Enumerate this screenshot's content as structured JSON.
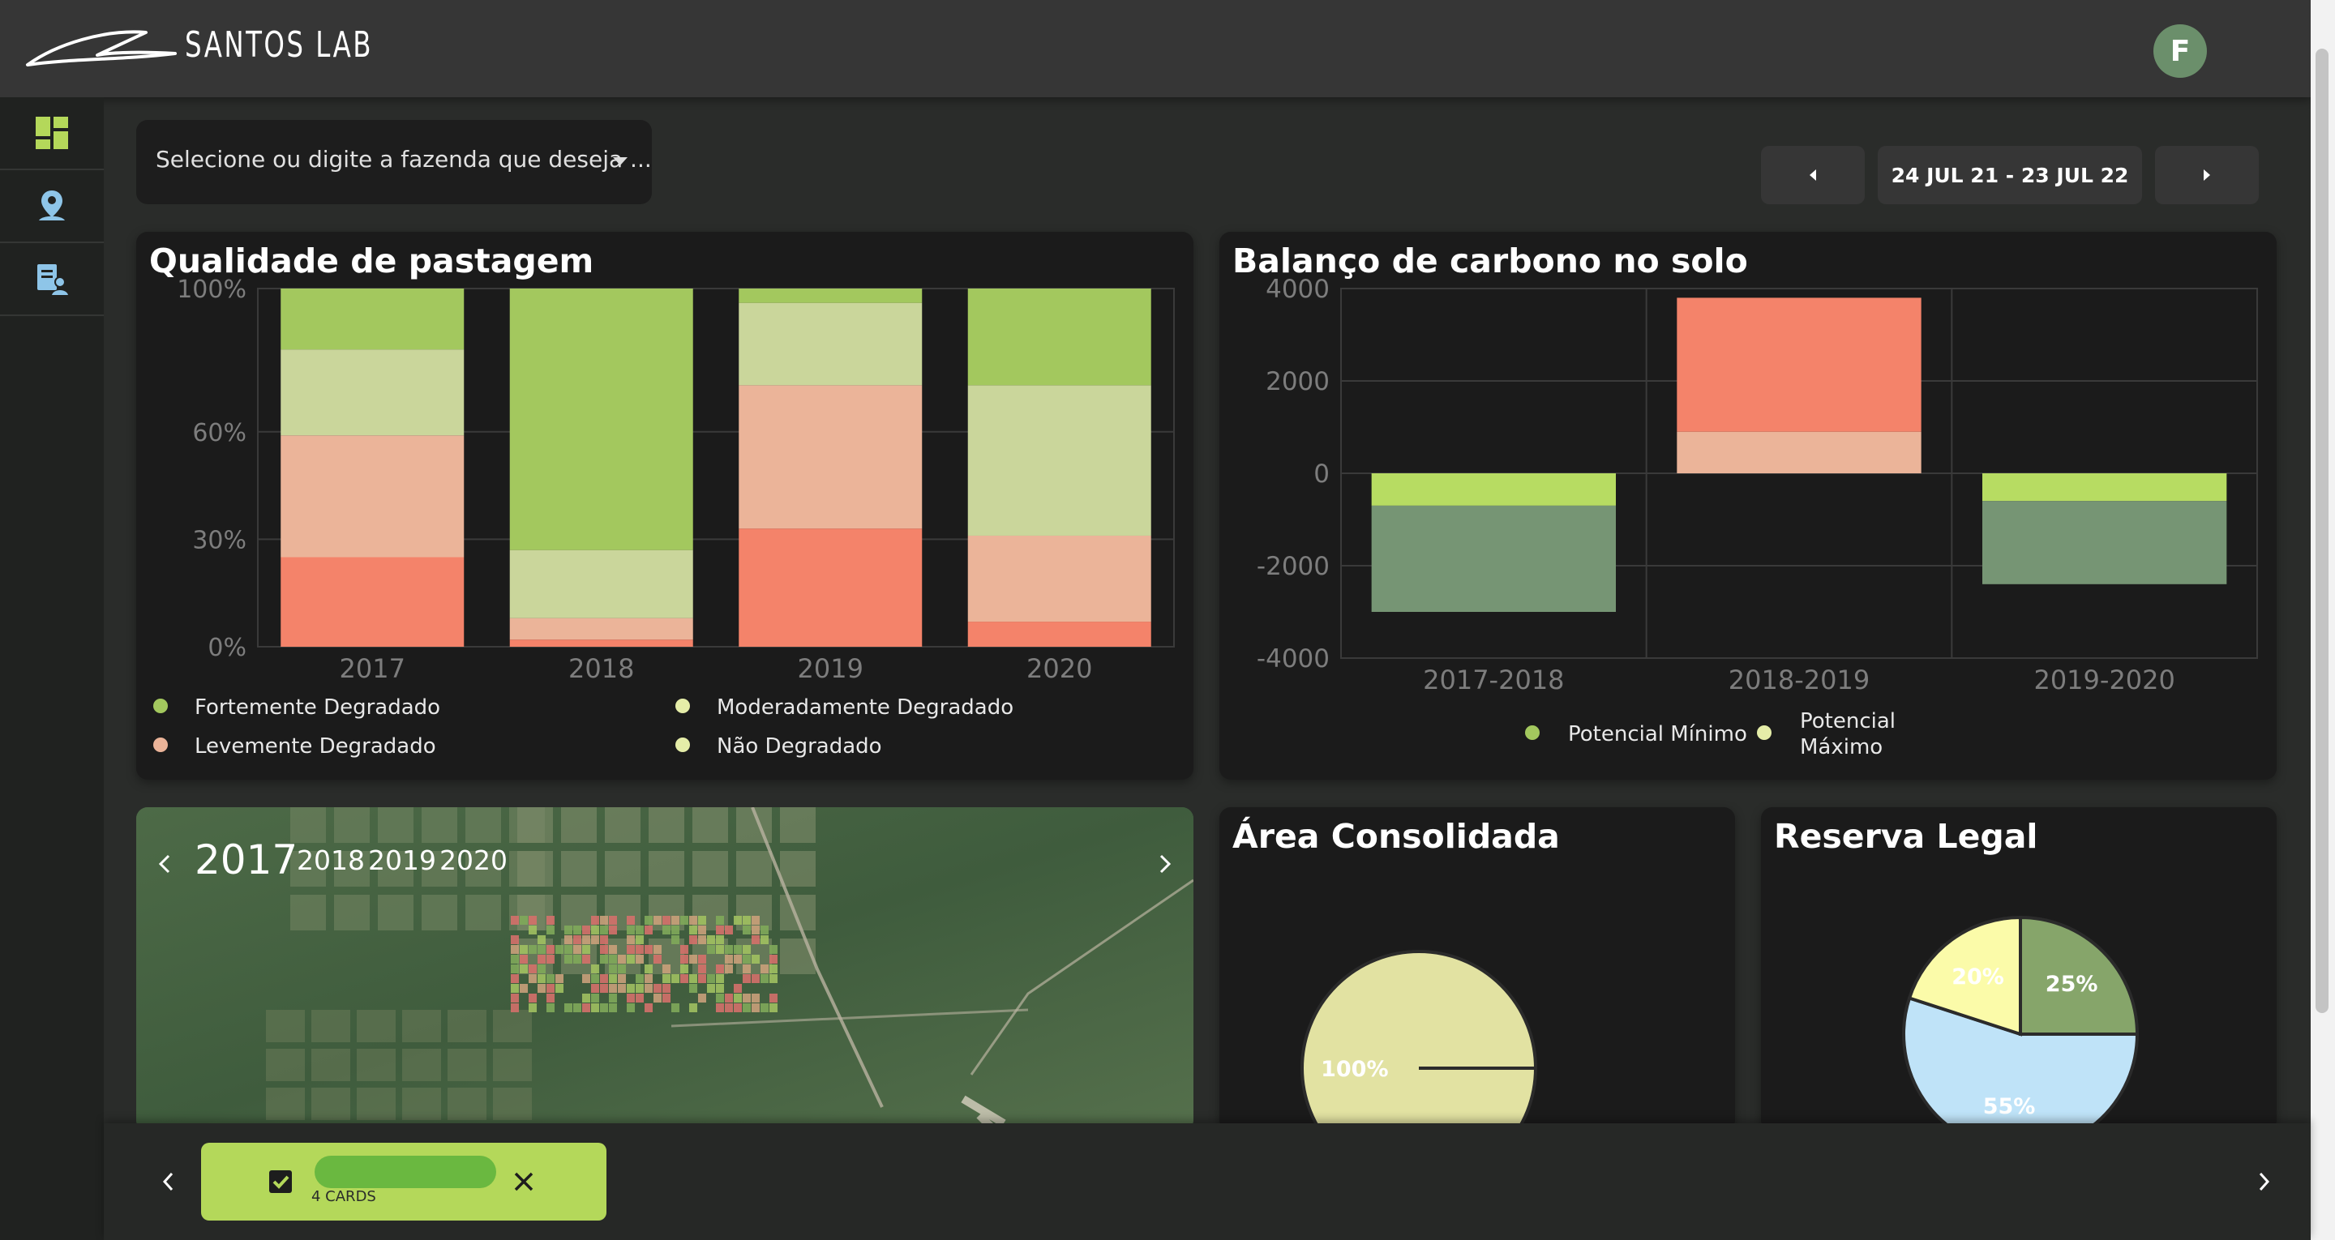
{
  "app": {
    "brand": "SANTOS LAB",
    "avatar_initial": "F",
    "accent": "#b4d85a"
  },
  "sidebar": {
    "items": [
      {
        "name": "dashboard",
        "icon": "dashboard-icon"
      },
      {
        "name": "map-pin-user",
        "icon": "map-pin-user-icon"
      },
      {
        "name": "report-user",
        "icon": "report-user-icon"
      }
    ]
  },
  "farm_select": {
    "placeholder": "Selecione ou digite a fazenda que deseja ..."
  },
  "date_range": {
    "label": "24 JUL 21 - 23 JUL 22",
    "prev_icon": "caret-left-icon",
    "next_icon": "caret-right-icon"
  },
  "cards": {
    "pasture": {
      "title": "Qualidade de pastagem"
    },
    "carbon": {
      "title": "Balanço de carbono no solo"
    },
    "consolidated": {
      "title": "Área Consolidada"
    },
    "reserve": {
      "title": "Reserva Legal"
    }
  },
  "chart_data": [
    {
      "type": "bar",
      "stacked": true,
      "title": "Qualidade de pastagem",
      "categories": [
        "2017",
        "2018",
        "2019",
        "2020"
      ],
      "y_ticks": [
        "100%",
        "60%",
        "30%",
        "0%"
      ],
      "y_tick_values": [
        100,
        60,
        30,
        0
      ],
      "ylim": [
        0,
        100
      ],
      "series": [
        {
          "name": "Fortemente Degradado",
          "color": "#f4836a",
          "values": [
            25,
            2,
            33,
            7
          ]
        },
        {
          "name": "Levemente Degradado",
          "color": "#ebb499",
          "values": [
            34,
            6,
            40,
            24
          ]
        },
        {
          "name": "Moderadamente Degradado",
          "color": "#cad69b",
          "values": [
            24,
            19,
            23,
            42
          ]
        },
        {
          "name": "Não Degradado",
          "color": "#a3c85e",
          "values": [
            17,
            73,
            4,
            27
          ]
        }
      ],
      "legend": [
        {
          "label": "Fortemente Degradado",
          "color": "#a3c85e"
        },
        {
          "label": "Moderadamente Degradado",
          "color": "#e5eda8"
        },
        {
          "label": "Levemente Degradado",
          "color": "#ebb499"
        },
        {
          "label": "Não Degradado",
          "color": "#e5eda8"
        }
      ],
      "legend_position": "bottom",
      "grid": true
    },
    {
      "type": "bar",
      "stacked": true,
      "title": "Balanço de carbono no solo",
      "categories": [
        "2017-2018",
        "2018-2019",
        "2019-2020"
      ],
      "y_ticks": [
        "4000",
        "2000",
        "0",
        "-2000",
        "-4000"
      ],
      "y_tick_values": [
        4000,
        2000,
        0,
        -2000,
        -4000
      ],
      "ylim": [
        -4000,
        4000
      ],
      "segments": [
        {
          "category": "2017-2018",
          "from": 0,
          "to": -700,
          "color": "#b7dc62"
        },
        {
          "category": "2017-2018",
          "from": -700,
          "to": -3000,
          "color": "#769574"
        },
        {
          "category": "2018-2019",
          "from": 0,
          "to": 900,
          "color": "#ebb499"
        },
        {
          "category": "2018-2019",
          "from": 900,
          "to": 3800,
          "color": "#f4836a"
        },
        {
          "category": "2019-2020",
          "from": 0,
          "to": -600,
          "color": "#b7dc62"
        },
        {
          "category": "2019-2020",
          "from": -600,
          "to": -2400,
          "color": "#769574"
        }
      ],
      "legend": [
        {
          "label": "Potencial Mínimo",
          "color": "#a3c85e"
        },
        {
          "label": "Potencial Máximo",
          "color": "#e5eda8"
        }
      ],
      "legend_position": "bottom",
      "grid": true
    },
    {
      "type": "pie",
      "title": "Área Consolidada",
      "slices": [
        {
          "label": "100%",
          "value": 100,
          "color": "#e2e2a2"
        }
      ]
    },
    {
      "type": "pie",
      "title": "Reserva Legal",
      "slices": [
        {
          "label": "55%",
          "value": 55,
          "color": "#bfe3f8"
        },
        {
          "label": "20%",
          "value": 20,
          "color": "#fbfba9"
        },
        {
          "label": "25%",
          "value": 25,
          "color": "#86a56a"
        }
      ]
    }
  ],
  "map": {
    "years": [
      "2017",
      "2018",
      "2019",
      "2020"
    ],
    "selected_year": "2017",
    "prev_icon": "chevron-left-icon",
    "next_icon": "chevron-right-icon"
  },
  "bottom_bar": {
    "chip_count_label": "4 CARDS",
    "check_icon": "checkbox-checked-icon",
    "close_icon": "close-icon",
    "prev_icon": "chevron-left-icon",
    "next_icon": "chevron-right-icon"
  }
}
